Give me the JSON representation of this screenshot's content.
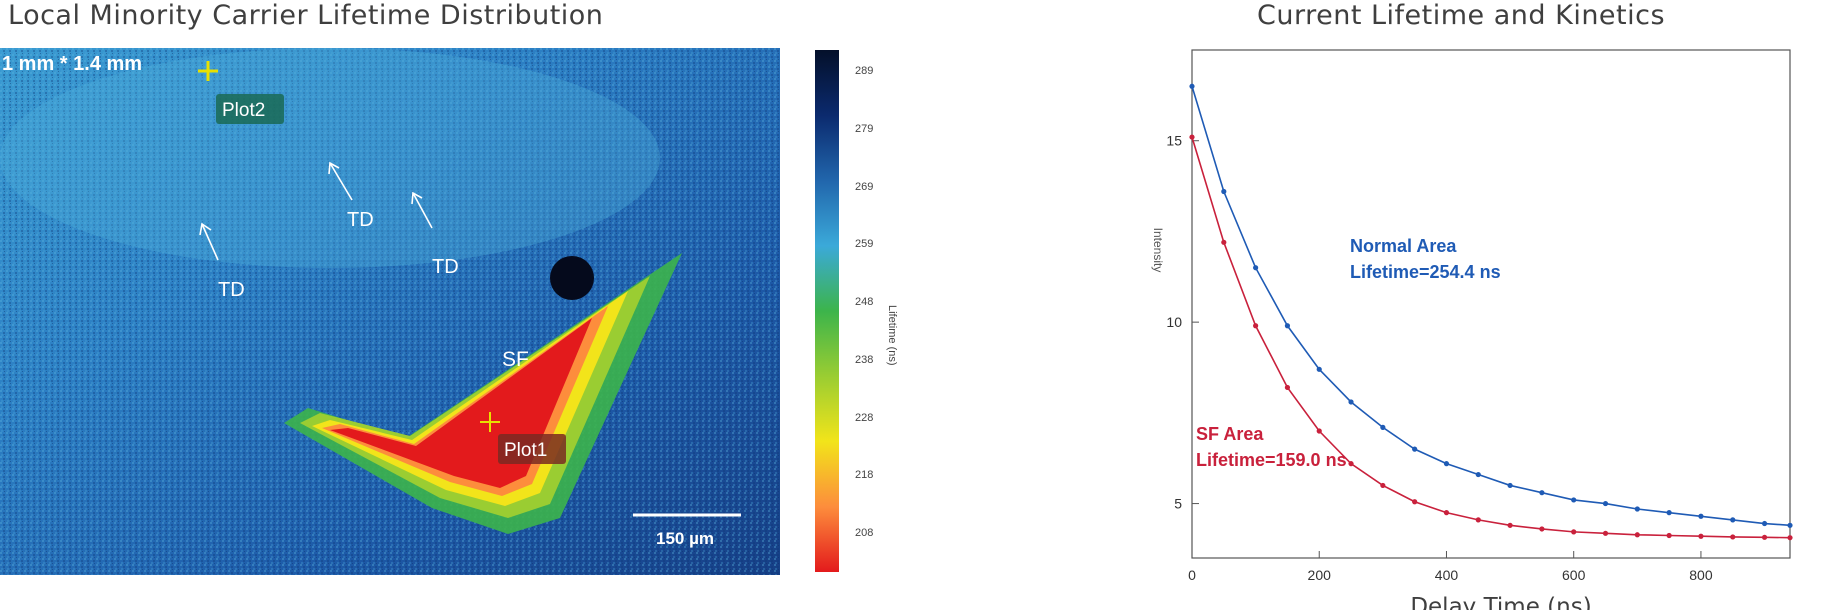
{
  "left_title": "Local Minority Carrier Lifetime Distribution",
  "right_title": "Current Lifetime and Kinetics",
  "map": {
    "size_label": "1 mm * 1.4 mm",
    "labels": [
      "TD",
      "TD",
      "TD",
      "SF"
    ],
    "markers": [
      "Plot1",
      "Plot2"
    ],
    "scalebar": "150 µm"
  },
  "colorbar": {
    "label": "Lifetime (ns)",
    "ticks": [
      "289",
      "279",
      "269",
      "259",
      "248",
      "238",
      "228",
      "218",
      "208"
    ],
    "colors": [
      "#e31a1c",
      "#fd8d3c",
      "#f2e41a",
      "#9acd32",
      "#3cb44b",
      "#3ba9d9",
      "#2166ac",
      "#0b2a6e",
      "#04102a"
    ]
  },
  "chart_data": {
    "type": "line",
    "title": "Current Lifetime and Kinetics",
    "xlabel": "Delay Time (ns)",
    "ylabel": "Intensity",
    "xlim": [
      0,
      940
    ],
    "ylim": [
      3.5,
      17.5
    ],
    "xticks": [
      0,
      200,
      400,
      600,
      800
    ],
    "yticks": [
      5,
      10,
      15
    ],
    "grid": false,
    "series": [
      {
        "name": "Normal Area",
        "lifetime_label": "Lifetime=254.4 ns",
        "color": "#1f5bb5",
        "x": [
          0,
          50,
          100,
          150,
          200,
          250,
          300,
          350,
          400,
          450,
          500,
          550,
          600,
          650,
          700,
          750,
          800,
          850,
          900,
          940
        ],
        "values": [
          16.5,
          13.6,
          11.5,
          9.9,
          8.7,
          7.8,
          7.1,
          6.5,
          6.1,
          5.8,
          5.5,
          5.3,
          5.1,
          5.0,
          4.85,
          4.75,
          4.65,
          4.55,
          4.45,
          4.4
        ]
      },
      {
        "name": "SF Area",
        "lifetime_label": "Lifetime=159.0 ns",
        "color": "#c9213c",
        "x": [
          0,
          50,
          100,
          150,
          200,
          250,
          300,
          350,
          400,
          450,
          500,
          550,
          600,
          650,
          700,
          750,
          800,
          850,
          900,
          940
        ],
        "values": [
          15.1,
          12.2,
          9.9,
          8.2,
          7.0,
          6.1,
          5.5,
          5.05,
          4.75,
          4.55,
          4.4,
          4.3,
          4.22,
          4.18,
          4.14,
          4.12,
          4.1,
          4.08,
          4.07,
          4.06
        ]
      }
    ]
  }
}
